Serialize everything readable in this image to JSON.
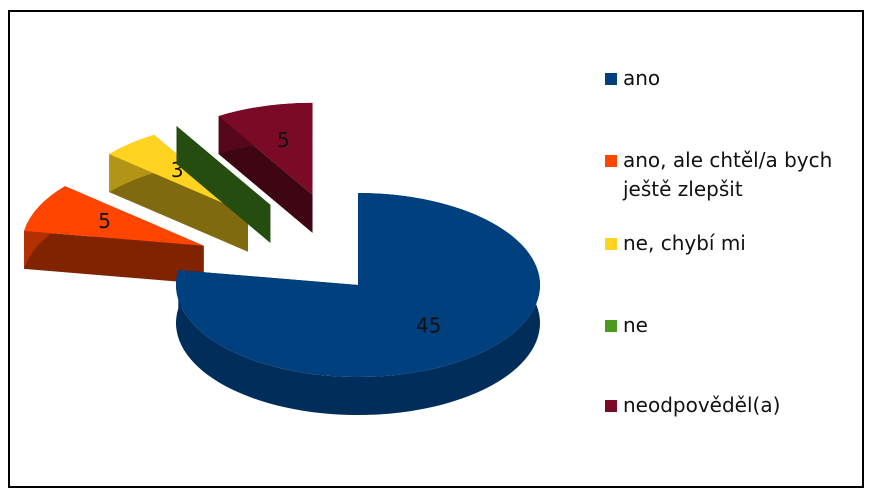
{
  "chart_data": {
    "type": "pie",
    "categories": [
      "ano",
      "ano, ale chtěl/a bych ještě zlepšit",
      "ne, chybí mi",
      "ne",
      "neodpověděl(a)"
    ],
    "values": [
      45,
      5,
      3,
      0,
      5
    ],
    "colors": [
      "#00407f",
      "#ff4500",
      "#ffd320",
      "#4a9a1e",
      "#7b0a26"
    ],
    "legend": "right"
  }
}
